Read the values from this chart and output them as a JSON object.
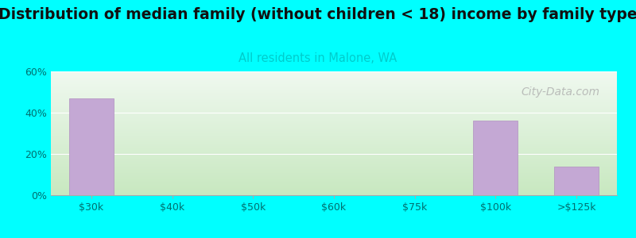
{
  "title": "Distribution of median family (without children < 18) income by family type",
  "subtitle": "All residents in Malone, WA",
  "subtitle_color": "#00cccc",
  "background_color": "#00ffff",
  "plot_bg_top": "#f0f8f0",
  "plot_bg_bottom": "#c8e8c0",
  "bar_color": "#c4a8d4",
  "bar_edgecolor": "#b090c0",
  "categories": [
    "$30k",
    "$40k",
    "$50k",
    "$60k",
    "$75k",
    "$100k",
    ">$125k"
  ],
  "values": [
    47.0,
    0.0,
    0.0,
    0.0,
    0.0,
    36.0,
    14.0
  ],
  "ylim": [
    0,
    60
  ],
  "yticks": [
    0,
    20,
    40,
    60
  ],
  "ytick_labels": [
    "0%",
    "20%",
    "40%",
    "60%"
  ],
  "title_fontsize": 13.5,
  "subtitle_fontsize": 10.5,
  "watermark_text": "City-Data.com",
  "watermark_color": "#aaaaaa",
  "title_color": "#111111",
  "tick_color": "#007070"
}
